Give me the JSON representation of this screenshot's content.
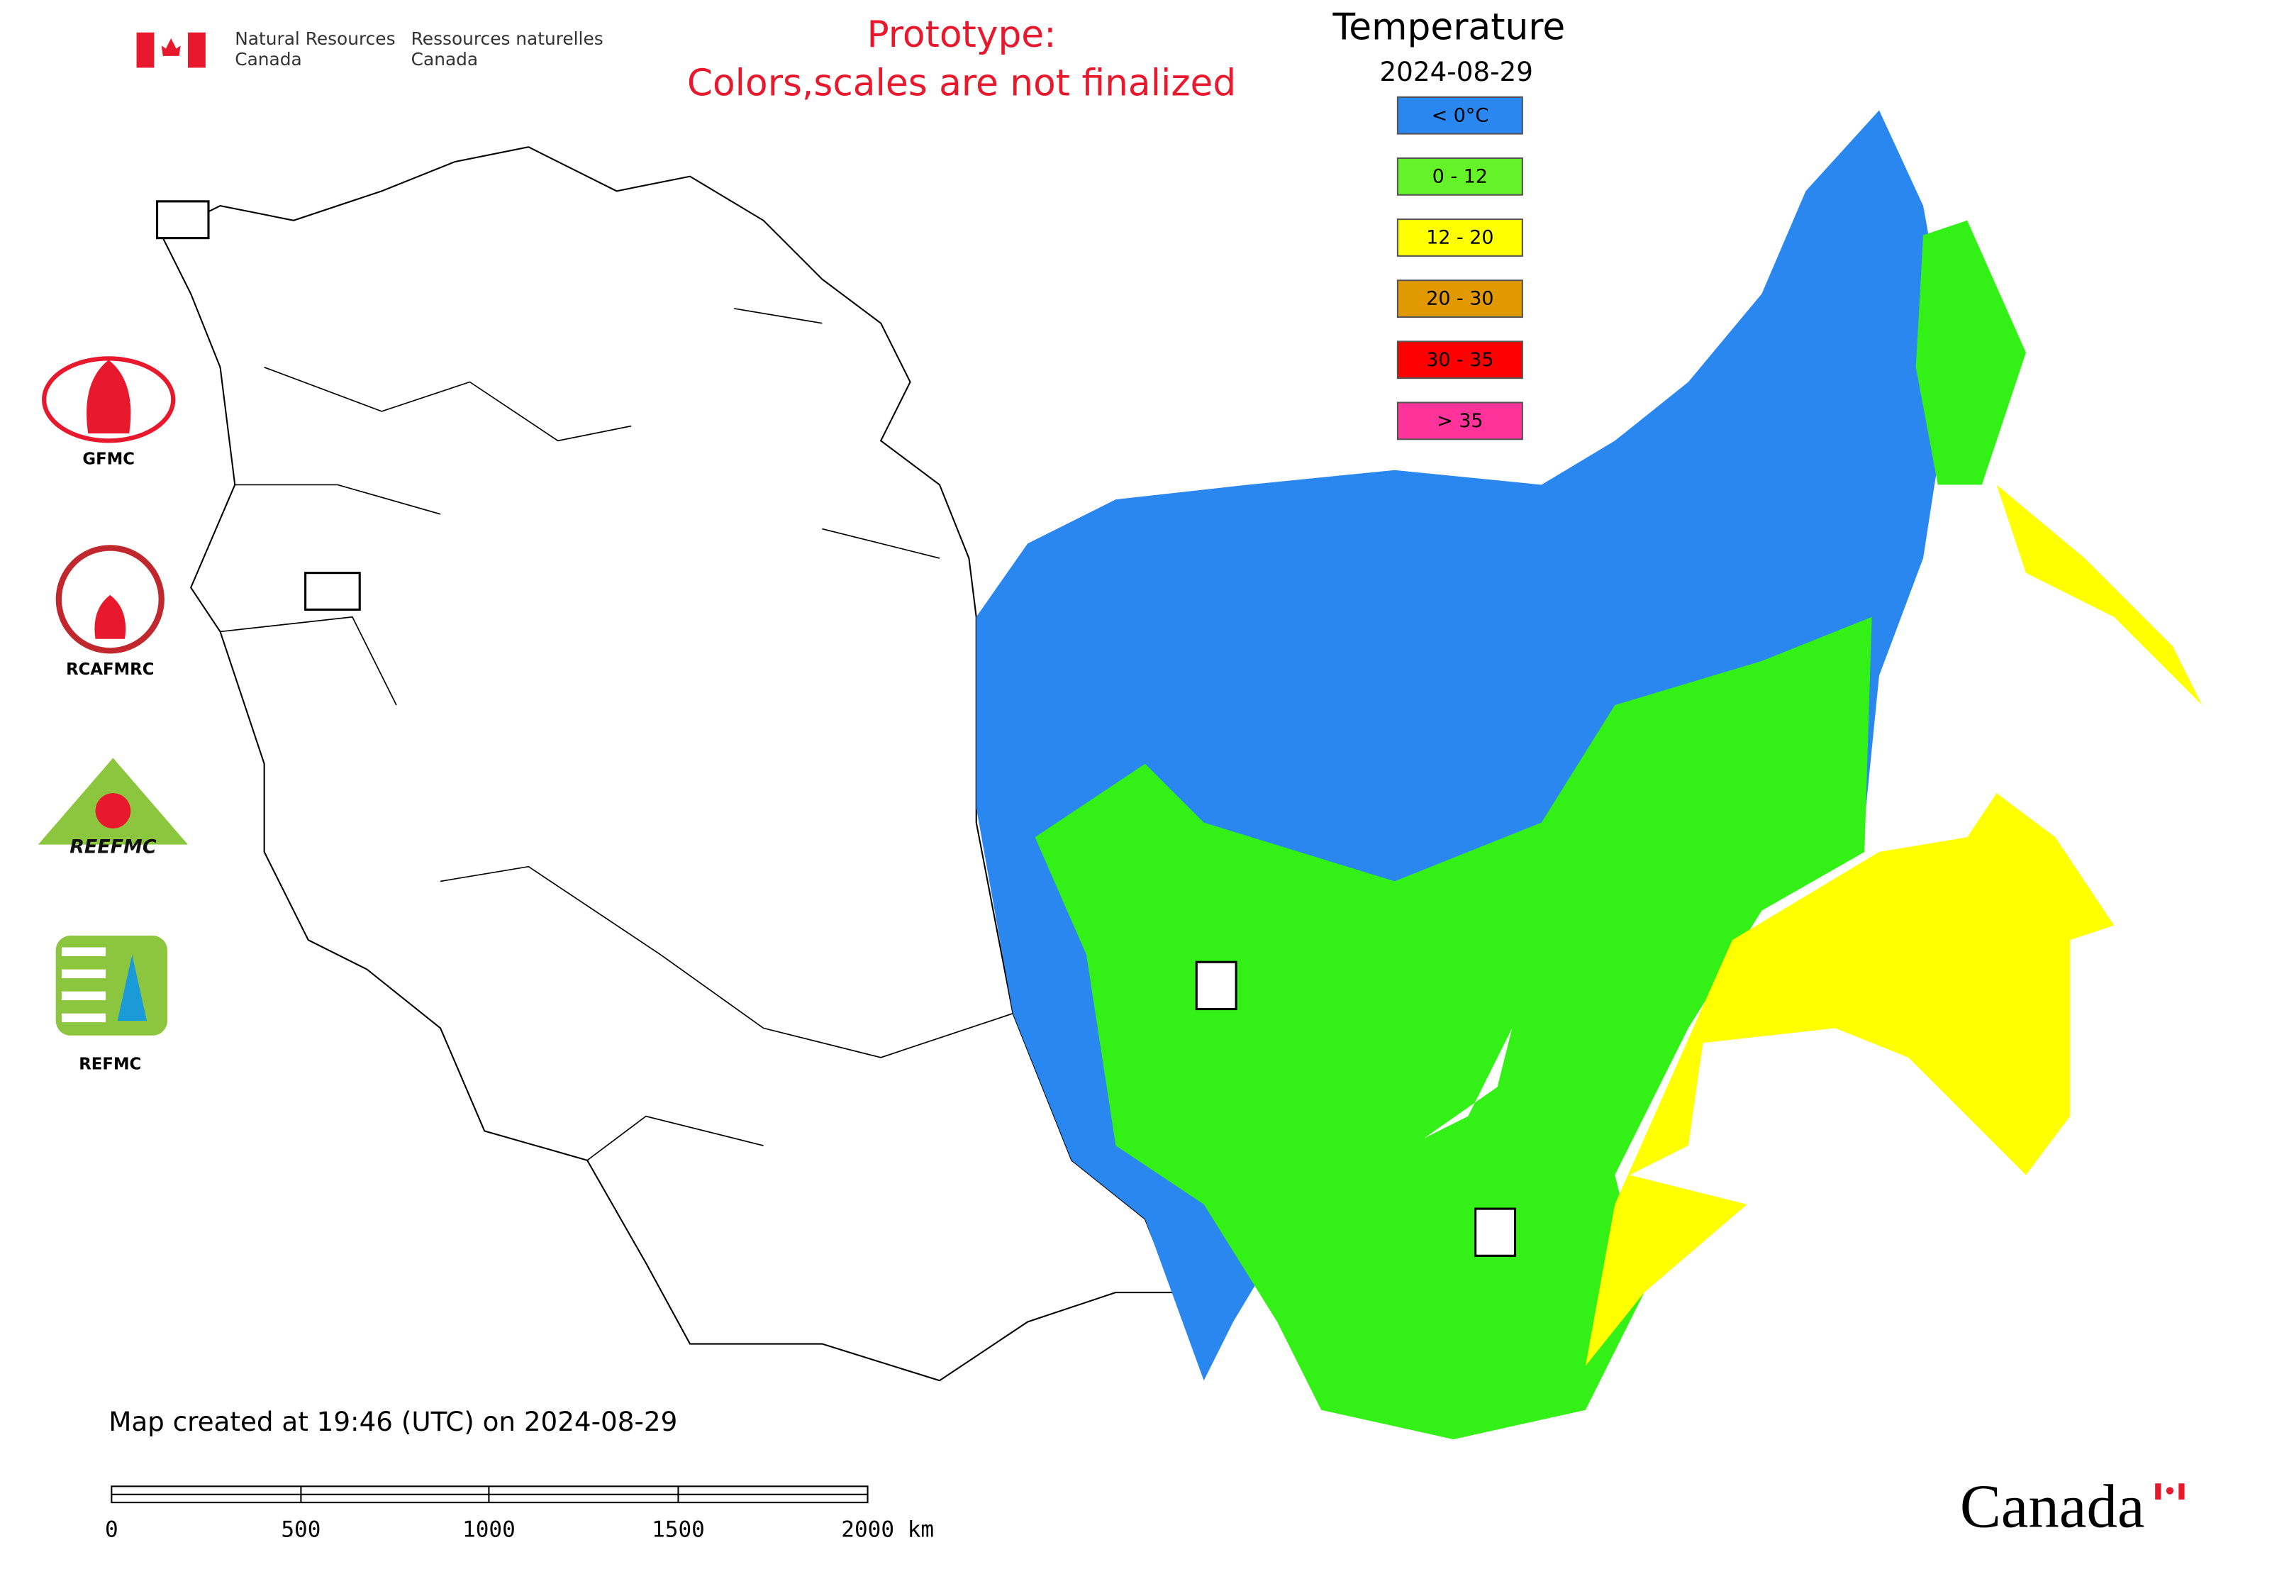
{
  "header": {
    "agency_en": [
      "Natural Resources",
      "Canada"
    ],
    "agency_fr": [
      "Ressources naturelles",
      "Canada"
    ],
    "notice": [
      "Prototype:",
      "Colors,scales are not finalized"
    ]
  },
  "legend": {
    "title": "Temperature",
    "date": "2024-08-29",
    "items": [
      {
        "label": "< 0°C",
        "color": "#2b87f0"
      },
      {
        "label": "0 - 12",
        "color": "#66f229"
      },
      {
        "label": "12 - 20",
        "color": "#ffff00"
      },
      {
        "label": "20 - 30",
        "color": "#e09a00"
      },
      {
        "label": "30 - 35",
        "color": "#ff0000"
      },
      {
        "label": "> 35",
        "color": "#ff3399"
      }
    ]
  },
  "logos": {
    "gfmc": "GFMC",
    "rcafmrc": "RCAFMRC",
    "reefmc": "REEFMC",
    "refmc": "REFMC"
  },
  "footer": {
    "created": "Map created at 19:46 (UTC) on 2024-08-29",
    "scale_labels": [
      "0",
      "500",
      "1000",
      "1500",
      "2000 km"
    ],
    "wordmark": "Canada"
  }
}
